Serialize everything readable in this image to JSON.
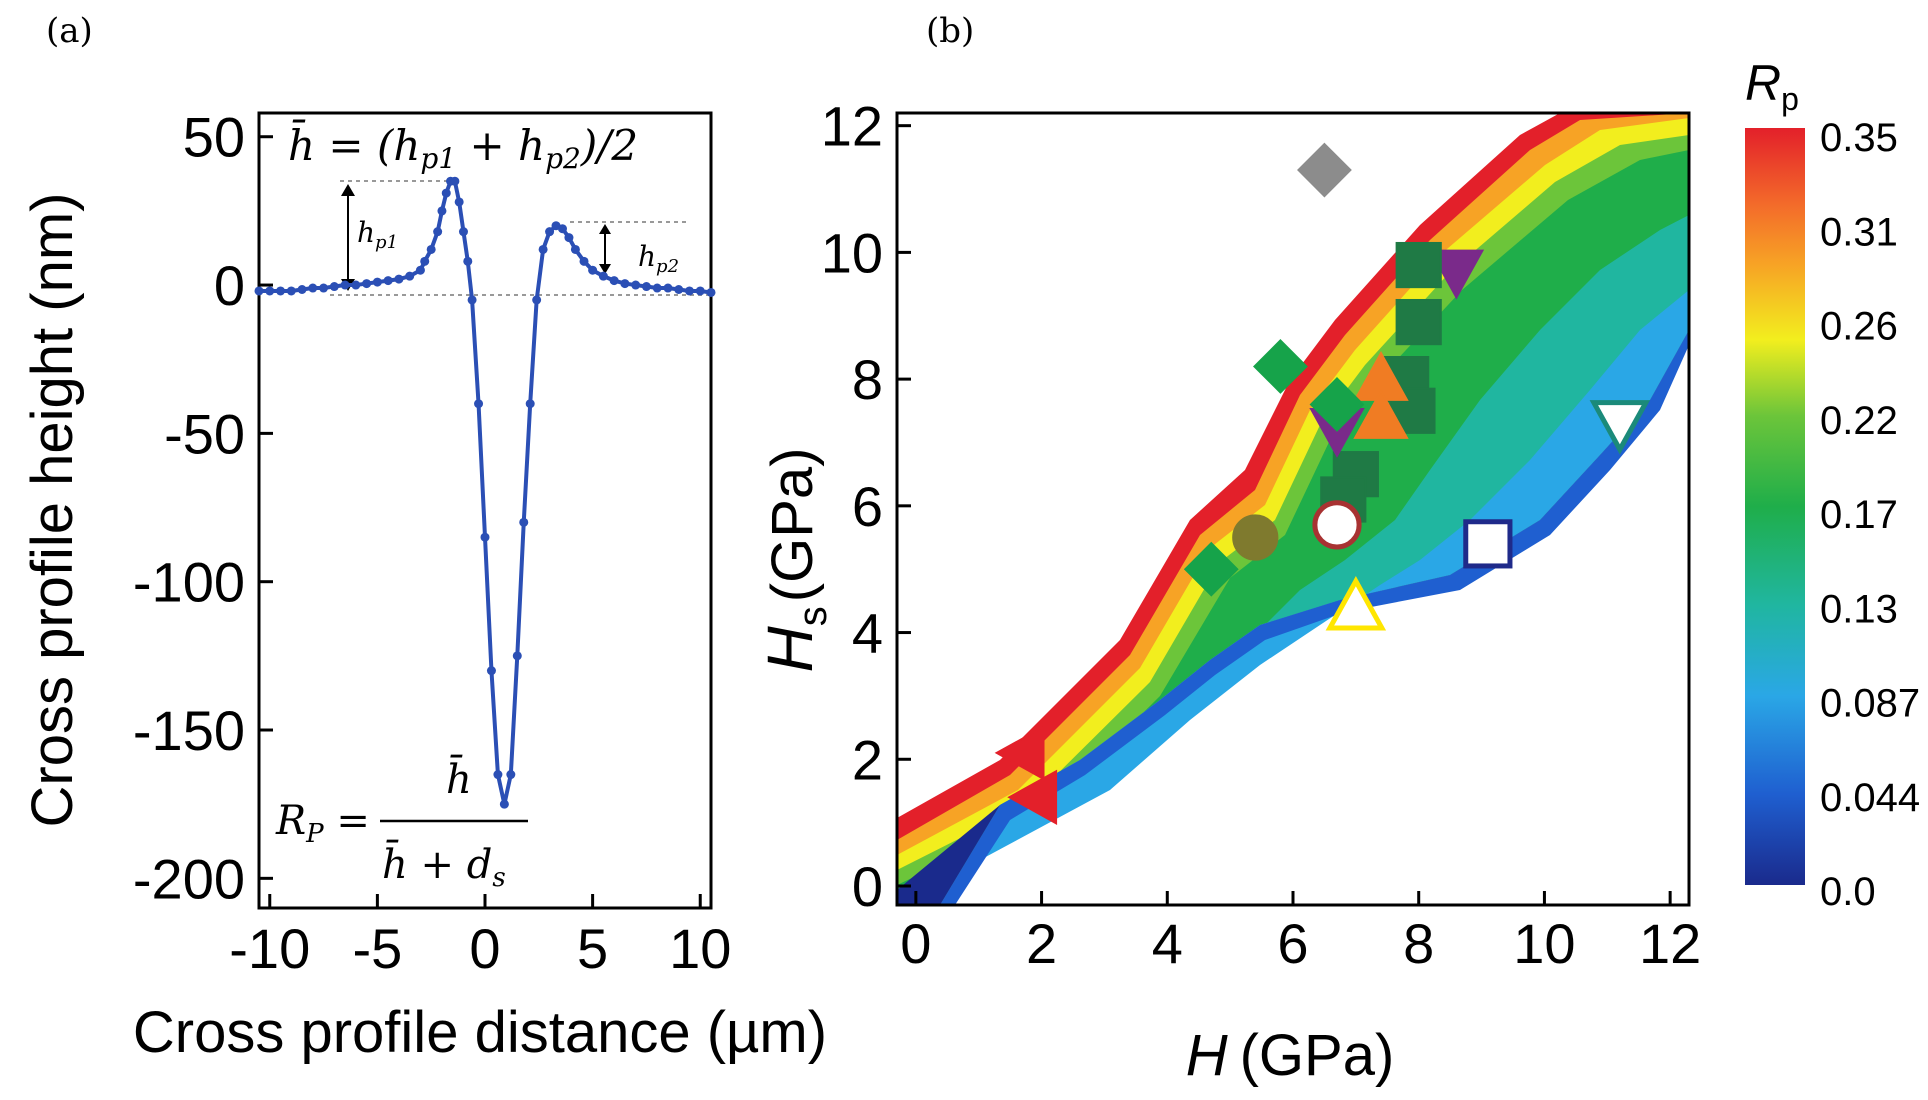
{
  "chart_data": [
    {
      "panel": "(a)",
      "type": "line",
      "xlabel": "Cross profile distance (µm)",
      "ylabel": "Cross profile height (nm)",
      "xlim": [
        -10.5,
        10.5
      ],
      "ylim": [
        -210,
        58
      ],
      "xticks": [
        -10,
        -5,
        0,
        5,
        10
      ],
      "yticks": [
        50,
        0,
        -50,
        -100,
        -150,
        -200
      ],
      "color": "#2b4fb5",
      "series": [
        {
          "x": [
            -10.5,
            -10,
            -9.5,
            -9,
            -8.5,
            -8,
            -7.5,
            -7,
            -6.5,
            -6,
            -5.5,
            -5,
            -4.5,
            -4,
            -3.5,
            -3,
            -2.8,
            -2.5,
            -2.2,
            -2,
            -1.8,
            -1.6,
            -1.4,
            -1.2,
            -1.0,
            -0.8,
            -0.6,
            -0.3,
            0.0,
            0.3,
            0.6,
            0.9,
            1.2,
            1.5,
            1.8,
            2.1,
            2.4,
            2.7,
            3.0,
            3.3,
            3.6,
            3.9,
            4.2,
            4.6,
            5.0,
            5.5,
            6,
            6.5,
            7,
            7.5,
            8,
            8.5,
            9,
            9.5,
            10,
            10.5
          ],
          "y": [
            -2,
            -2,
            -2,
            -2,
            -1.5,
            -1,
            -1,
            -0.5,
            0,
            0,
            0.5,
            1,
            1.5,
            2,
            3,
            5,
            8,
            12,
            18,
            25,
            31,
            35,
            35,
            28,
            18,
            8,
            -5,
            -40,
            -85,
            -130,
            -165,
            -175,
            -165,
            -125,
            -80,
            -40,
            -5,
            12,
            18,
            20,
            19,
            16,
            12,
            8,
            5,
            3,
            1.5,
            0.5,
            0,
            -0.5,
            -1,
            -1,
            -1.5,
            -2,
            -2,
            -2.5
          ]
        }
      ],
      "annotations": [
        "h̄ = (h_p1 + h_p2)/2",
        "h_p1",
        "h_p2",
        "R_P = h̄ / (h̄ + d_s)"
      ]
    },
    {
      "panel": "(b)",
      "type": "heatmap",
      "xlabel": "H (GPa)",
      "ylabel": "H_s (GPa)",
      "xlim": [
        -0.3,
        12.3
      ],
      "ylim": [
        -0.3,
        12.2
      ],
      "xticks": [
        0,
        2,
        4,
        6,
        8,
        10,
        12
      ],
      "yticks": [
        0,
        2,
        4,
        6,
        8,
        10,
        12
      ],
      "colorbar_title": "R_p",
      "colorbar_ticks": [
        "0.35",
        "0.31",
        "0.26",
        "0.22",
        "0.17",
        "0.13",
        "0.087",
        "0.044",
        "0.0"
      ],
      "markers": [
        {
          "shape": "diamond",
          "x": 6.5,
          "y": 11.3,
          "color": "#8c8c8c"
        },
        {
          "shape": "triangle-down",
          "x": 8.6,
          "y": 9.7,
          "color": "#7a2a8a"
        },
        {
          "shape": "square",
          "x": 8.0,
          "y": 9.8,
          "color": "#1f7a45"
        },
        {
          "shape": "square",
          "x": 8.0,
          "y": 8.9,
          "color": "#1f7a45"
        },
        {
          "shape": "square",
          "x": 7.8,
          "y": 8.0,
          "color": "#1f7a45"
        },
        {
          "shape": "square",
          "x": 7.9,
          "y": 7.5,
          "color": "#1f7a45"
        },
        {
          "shape": "square",
          "x": 7.0,
          "y": 6.5,
          "color": "#1f7a45"
        },
        {
          "shape": "square",
          "x": 6.8,
          "y": 6.1,
          "color": "#1f7a45"
        },
        {
          "shape": "triangle-up",
          "x": 7.4,
          "y": 8.0,
          "color": "#f07c23"
        },
        {
          "shape": "triangle-up",
          "x": 7.4,
          "y": 7.4,
          "color": "#f07c23"
        },
        {
          "shape": "triangle-down",
          "x": 6.7,
          "y": 7.2,
          "color": "#7a2a8a"
        },
        {
          "shape": "diamond",
          "x": 5.8,
          "y": 8.2,
          "color": "#16a34a"
        },
        {
          "shape": "diamond",
          "x": 6.7,
          "y": 7.6,
          "color": "#16a34a"
        },
        {
          "shape": "diamond",
          "x": 4.7,
          "y": 5.0,
          "color": "#16a34a"
        },
        {
          "shape": "circle",
          "x": 5.4,
          "y": 5.5,
          "color": "#7f7a2e"
        },
        {
          "shape": "circle-open",
          "x": 6.7,
          "y": 5.7,
          "color": "#a83232"
        },
        {
          "shape": "triangle-up-open",
          "x": 7.0,
          "y": 4.4,
          "color": "#ffe600"
        },
        {
          "shape": "square-open",
          "x": 9.1,
          "y": 5.4,
          "color": "#1f2a8a"
        },
        {
          "shape": "triangle-down-open",
          "x": 11.2,
          "y": 7.3,
          "color": "#1b8a7a"
        },
        {
          "shape": "triangle-left",
          "x": 1.7,
          "y": 2.1,
          "color": "#e3202a"
        },
        {
          "shape": "triangle-left",
          "x": 1.9,
          "y": 1.4,
          "color": "#e3202a"
        }
      ]
    }
  ],
  "labels": {
    "panel_a": "(a)",
    "panel_b": "(b)",
    "cb_title_main": "R",
    "cb_title_sub": "p",
    "hs_main": "H",
    "hs_sub": "s",
    "hs_rest": "(GPa)",
    "hx_main": "H",
    "hx_rest": "(GPa)",
    "hp1": "h",
    "hp1_sub": "p1",
    "hp2": "h",
    "hp2_sub": "p2"
  }
}
